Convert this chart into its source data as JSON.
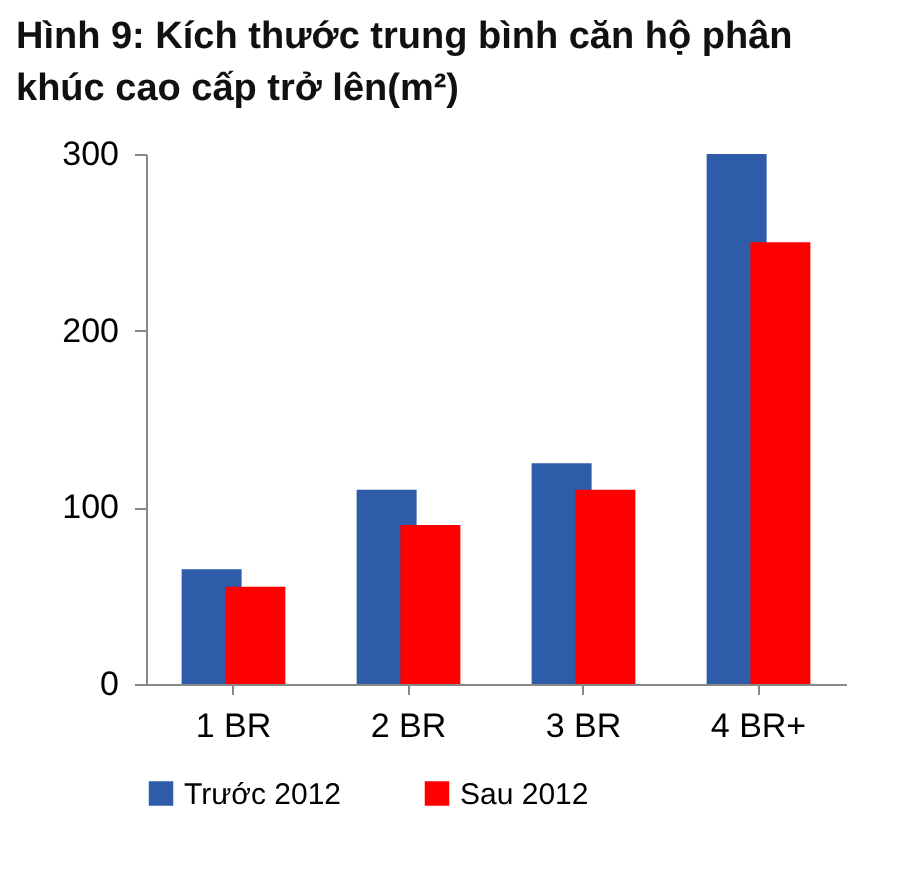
{
  "chart_data": {
    "type": "bar",
    "title": "Hình 9: Kích thước trung bình căn hộ phân khúc cao cấp trở lên(m²)",
    "categories": [
      "1 BR",
      "2 BR",
      "3 BR",
      "4 BR+"
    ],
    "series": [
      {
        "name": "Trước 2012",
        "color": "#2e5ca8",
        "values": [
          65,
          110,
          125,
          300
        ]
      },
      {
        "name": "Sau 2012",
        "color": "#ff0000",
        "values": [
          55,
          90,
          110,
          250
        ]
      }
    ],
    "ylim": [
      0,
      300
    ],
    "yticks": [
      0,
      100,
      200,
      300
    ],
    "grid": false,
    "legend": "bottom"
  }
}
